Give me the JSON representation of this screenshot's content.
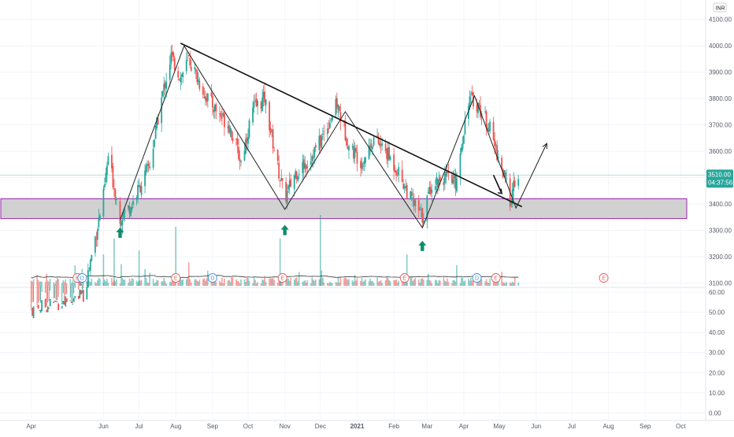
{
  "chart_data": [
    {
      "type": "candlestick",
      "currency_label": "INR",
      "price_ticks": [
        "4100.00",
        "4000.00",
        "3900.00",
        "3800.00",
        "3700.00",
        "3600.00",
        "3500.00",
        "3400.00",
        "3300.00",
        "3200.00",
        "3100.00"
      ],
      "price_tick_values": [
        4100,
        4000,
        3900,
        3800,
        3700,
        3600,
        3500,
        3400,
        3300,
        3200,
        3100
      ],
      "ylim": [
        3090,
        4120
      ],
      "current_price": "3510.00",
      "countdown": "04:37:56",
      "x_labels": [
        "Apr",
        "Jun",
        "Jul",
        "Aug",
        "Sep",
        "Oct",
        "Nov",
        "Dec",
        "2021",
        "Feb",
        "Mar",
        "Apr",
        "May",
        "Jun",
        "Jul",
        "Aug",
        "Sep",
        "Oct"
      ],
      "support_zone": {
        "low": 3345,
        "high": 3420
      },
      "trendline": [
        {
          "date": "2020-08-05",
          "price": 4010
        },
        {
          "date": "2021-05-20",
          "price": 3390
        }
      ],
      "swing_path": [
        {
          "date": "2020-06-15",
          "price": 3340
        },
        {
          "date": "2020-08-08",
          "price": 4000
        },
        {
          "date": "2020-11-01",
          "price": 3380
        },
        {
          "date": "2020-12-22",
          "price": 3750
        },
        {
          "date": "2021-02-25",
          "price": 3310
        },
        {
          "date": "2021-04-10",
          "price": 3810
        },
        {
          "date": "2021-05-15",
          "price": 3385
        },
        {
          "date": "2021-06-10",
          "price": 3630
        }
      ],
      "support_arrows": [
        {
          "date": "2020-06-15",
          "price": 3290
        },
        {
          "date": "2020-11-01",
          "price": 3300
        },
        {
          "date": "2021-02-25",
          "price": 3240
        }
      ],
      "price_path": [
        {
          "date": "2020-04-01",
          "price": 3000
        },
        {
          "date": "2020-05-15",
          "price": 3050
        },
        {
          "date": "2020-06-01",
          "price": 3430
        },
        {
          "date": "2020-06-05",
          "price": 3580
        },
        {
          "date": "2020-06-15",
          "price": 3350
        },
        {
          "date": "2020-06-25",
          "price": 3400
        },
        {
          "date": "2020-07-10",
          "price": 3550
        },
        {
          "date": "2020-07-20",
          "price": 3800
        },
        {
          "date": "2020-07-28",
          "price": 3960
        },
        {
          "date": "2020-08-05",
          "price": 3880
        },
        {
          "date": "2020-08-12",
          "price": 3950
        },
        {
          "date": "2020-08-25",
          "price": 3820
        },
        {
          "date": "2020-09-05",
          "price": 3750
        },
        {
          "date": "2020-09-15",
          "price": 3700
        },
        {
          "date": "2020-09-25",
          "price": 3560
        },
        {
          "date": "2020-10-05",
          "price": 3760
        },
        {
          "date": "2020-10-15",
          "price": 3800
        },
        {
          "date": "2020-10-25",
          "price": 3560
        },
        {
          "date": "2020-11-01",
          "price": 3420
        },
        {
          "date": "2020-11-10",
          "price": 3520
        },
        {
          "date": "2020-11-20",
          "price": 3560
        },
        {
          "date": "2020-12-01",
          "price": 3640
        },
        {
          "date": "2020-12-15",
          "price": 3780
        },
        {
          "date": "2020-12-25",
          "price": 3620
        },
        {
          "date": "2021-01-05",
          "price": 3560
        },
        {
          "date": "2021-01-15",
          "price": 3650
        },
        {
          "date": "2021-01-25",
          "price": 3600
        },
        {
          "date": "2021-02-05",
          "price": 3520
        },
        {
          "date": "2021-02-15",
          "price": 3420
        },
        {
          "date": "2021-02-25",
          "price": 3350
        },
        {
          "date": "2021-03-05",
          "price": 3480
        },
        {
          "date": "2021-03-15",
          "price": 3500
        },
        {
          "date": "2021-03-25",
          "price": 3480
        },
        {
          "date": "2021-04-05",
          "price": 3800
        },
        {
          "date": "2021-04-12",
          "price": 3780
        },
        {
          "date": "2021-04-22",
          "price": 3700
        },
        {
          "date": "2021-05-02",
          "price": 3550
        },
        {
          "date": "2021-05-10",
          "price": 3420
        },
        {
          "date": "2021-05-17",
          "price": 3510
        }
      ],
      "volume_axis_ticks": [
        "60.00",
        "50.00",
        "40.00",
        "30.00",
        "20.00",
        "10.00",
        "0.00"
      ],
      "volume_axis_values": [
        60,
        50,
        40,
        30,
        20,
        10,
        0
      ],
      "volume_ylim": [
        -3,
        62
      ],
      "event_markers": [
        {
          "date": "2020-05-10",
          "label": "E",
          "color": "#e25d5d"
        },
        {
          "date": "2020-05-14",
          "label": "D",
          "color": "#4a90d9"
        },
        {
          "date": "2020-08-01",
          "label": "E",
          "color": "#e25d5d"
        },
        {
          "date": "2020-09-01",
          "label": "D",
          "color": "#4a90d9"
        },
        {
          "date": "2020-10-30",
          "label": "E",
          "color": "#e25d5d"
        },
        {
          "date": "2021-02-10",
          "label": "E",
          "color": "#e25d5d"
        },
        {
          "date": "2021-04-12",
          "label": "D",
          "color": "#4a90d9"
        },
        {
          "date": "2021-04-28",
          "label": "E",
          "color": "#e25d5d"
        },
        {
          "date": "2021-07-28",
          "label": "E",
          "color": "#e25d5d"
        }
      ],
      "colors": {
        "up": "#26a69a",
        "down": "#ef5350",
        "zone_fill": "#c9c9c9",
        "zone_border": "#9c27b0",
        "price_tag": "#26a69a",
        "arrow": "#0e8c6b",
        "current_price_line": "#b2dfdb"
      }
    }
  ]
}
